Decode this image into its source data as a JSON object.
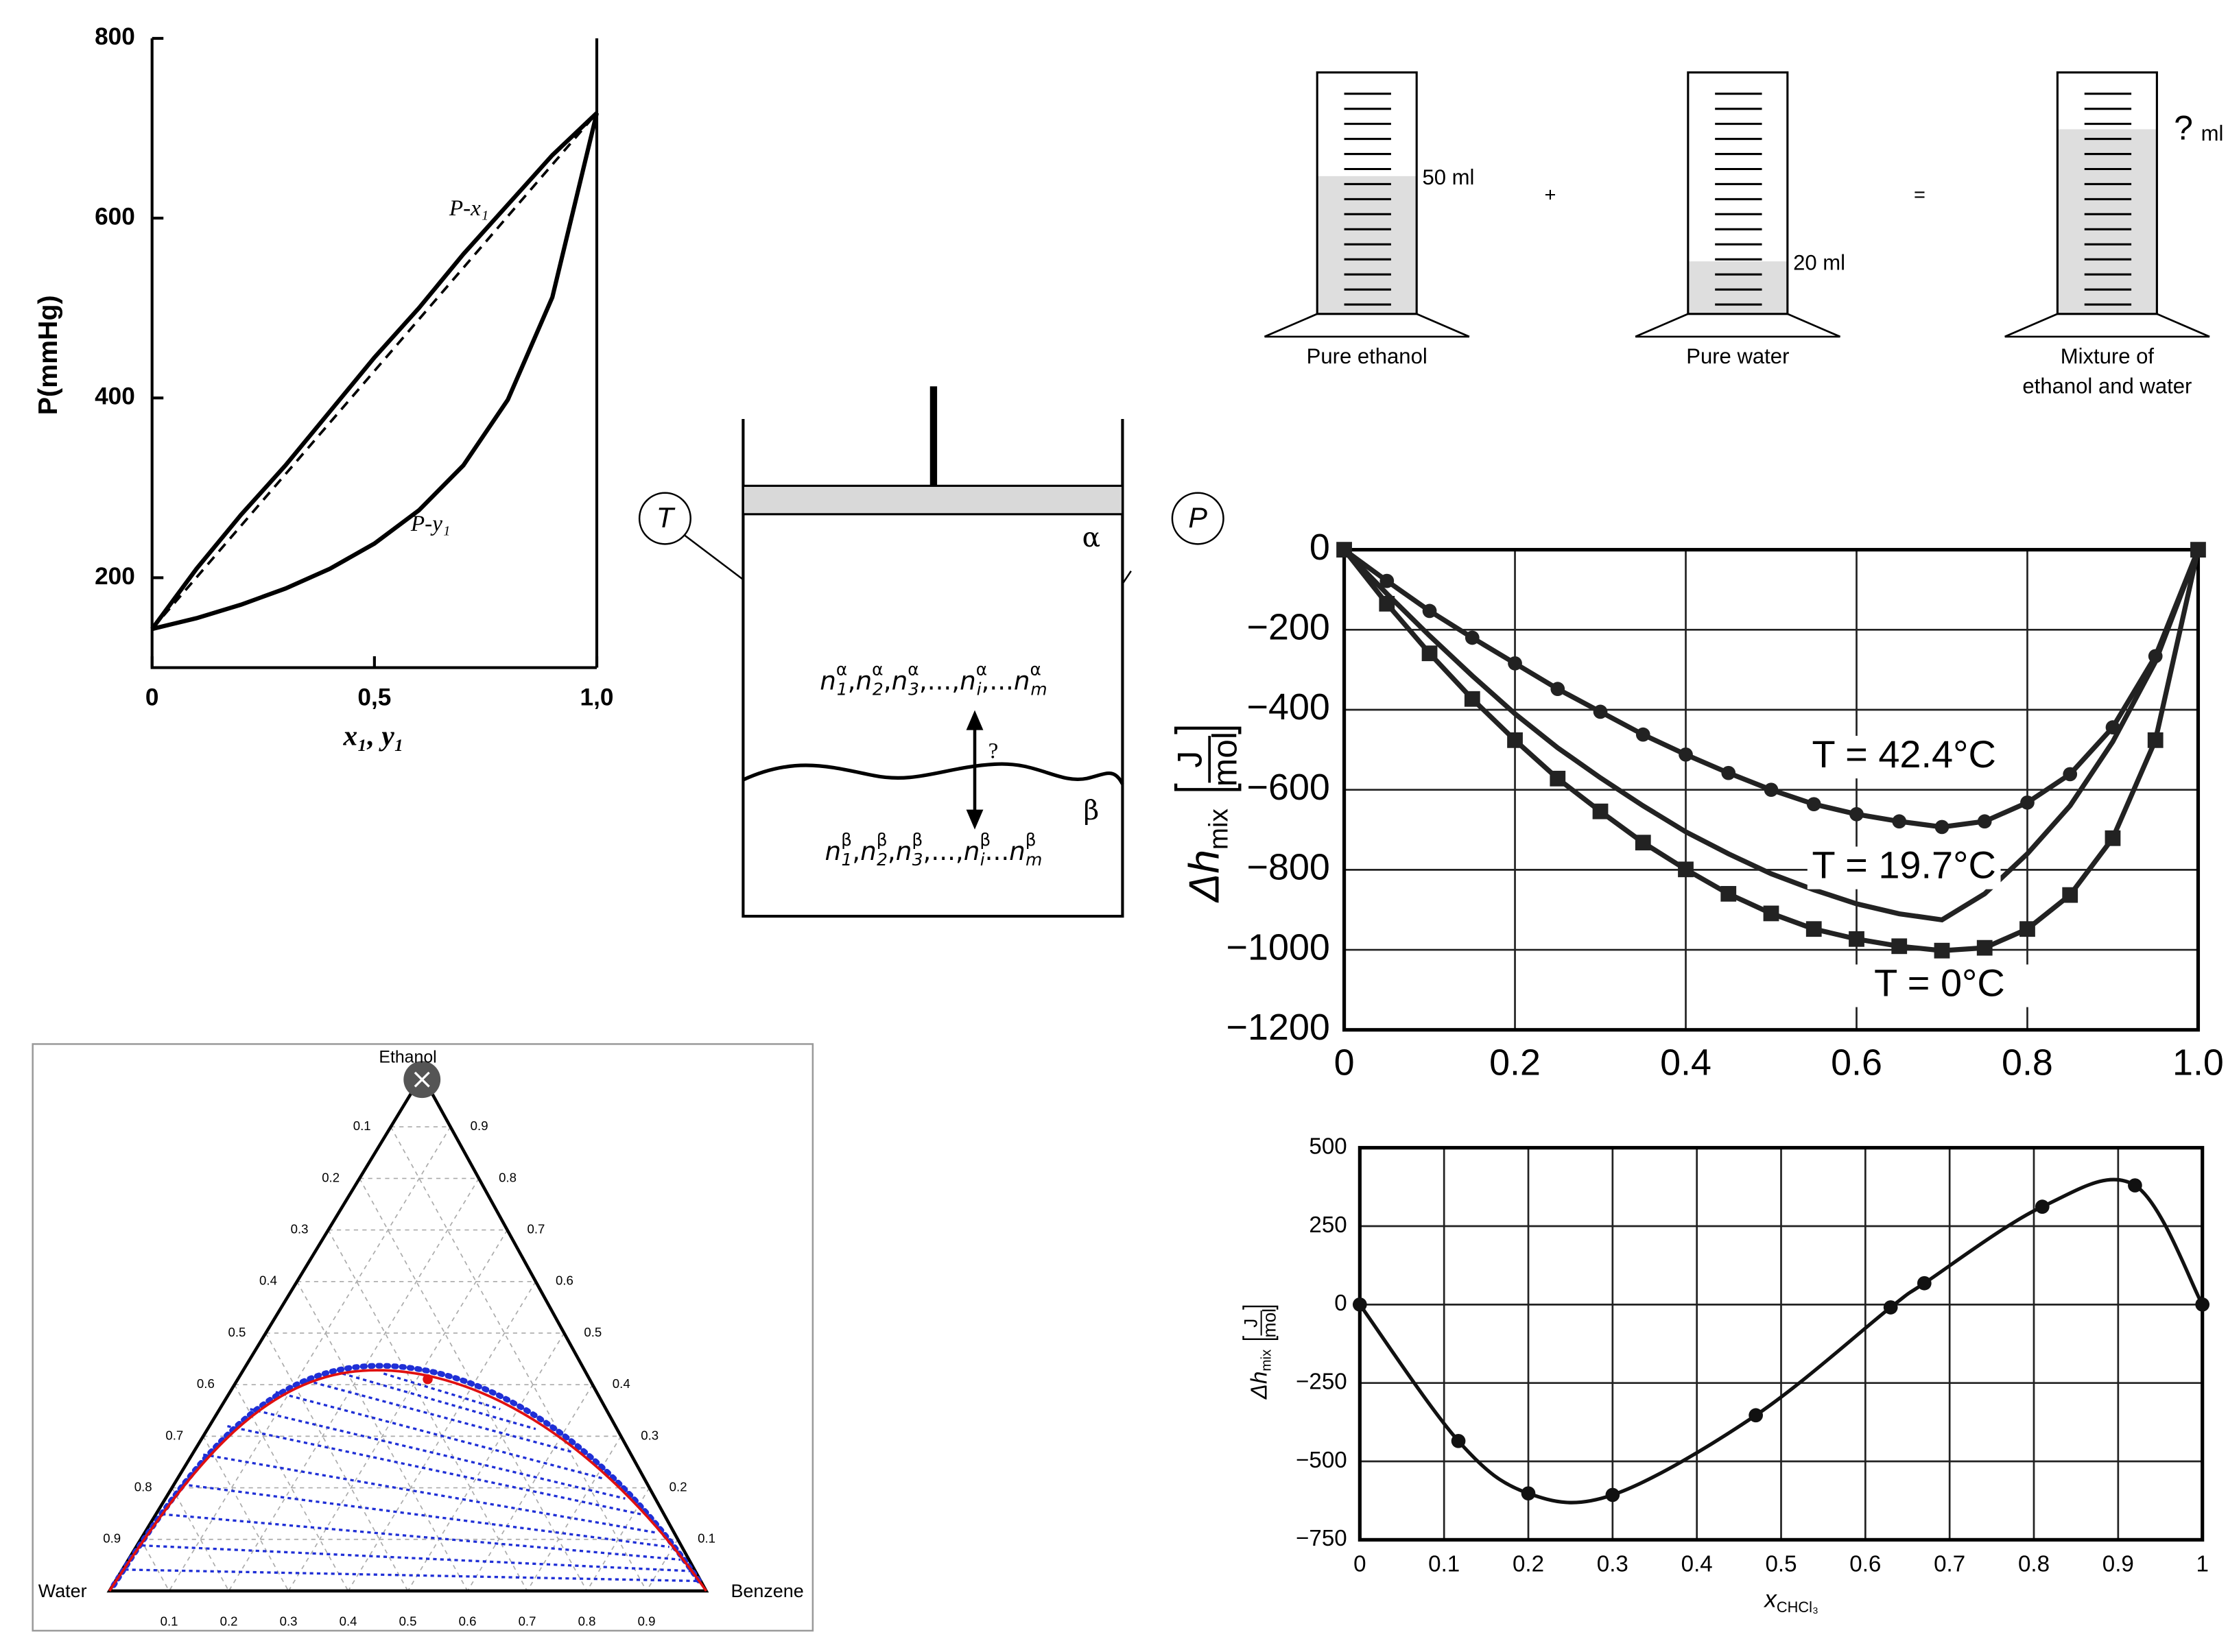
{
  "chart_data": [
    {
      "type": "line",
      "ylabel": "P(mmHg)",
      "xlabel": "x₁, y₁",
      "x": [
        0,
        0.1,
        0.2,
        0.3,
        0.4,
        0.5,
        0.6,
        0.7,
        0.8,
        0.9,
        1
      ],
      "xlim": [
        0,
        1
      ],
      "ylim": [
        100,
        800
      ],
      "xticks": [
        0,
        {
          "value": 0.5,
          "label": "0,5"
        },
        {
          "value": 1,
          "label": "1,0"
        }
      ],
      "yticks": [
        200,
        400,
        600,
        800
      ],
      "grid": false,
      "series": [
        {
          "name": "P-x₁",
          "color": "#000000",
          "values": [
            143,
            210,
            270,
            325,
            385,
            445,
            500,
            560,
            615,
            670,
            717
          ]
        },
        {
          "name": "P-y₁",
          "color": "#000000",
          "values": [
            143,
            155,
            170,
            188,
            210,
            238,
            275,
            325,
            398,
            512,
            717
          ]
        },
        {
          "color": "#000000",
          "dashed": true,
          "x": [
            0,
            1
          ],
          "values": [
            143,
            717
          ]
        }
      ]
    },
    {
      "type": "line",
      "ylabel": {
        "symbol": "Δh",
        "subscript": "mix",
        "unit_numerator": "J",
        "unit_denominator": "mol"
      },
      "x": [
        0,
        0.05,
        0.1,
        0.15,
        0.2,
        0.25,
        0.3,
        0.35,
        0.4,
        0.45,
        0.5,
        0.55,
        0.6,
        0.65,
        0.7,
        0.75,
        0.8,
        0.85,
        0.9,
        0.95,
        1
      ],
      "xlim": [
        0,
        1
      ],
      "ylim": [
        -1200,
        0
      ],
      "xticks": [
        0,
        0.2,
        0.4,
        0.6,
        0.8,
        {
          "value": 1,
          "label": "1.0"
        }
      ],
      "yticks": [
        0,
        {
          "value": -200,
          "label": "−200"
        },
        {
          "value": -400,
          "label": "−400"
        },
        {
          "value": -600,
          "label": "−600"
        },
        {
          "value": -800,
          "label": "−800"
        },
        {
          "value": -1000,
          "label": "−1000"
        },
        {
          "value": -1200,
          "label": "−1200"
        }
      ],
      "grid": true,
      "series": [
        {
          "name": "T = 42.4°C",
          "color": "#222222",
          "marker": "circle",
          "values": [
            0,
            -78,
            -153,
            -220,
            -284,
            -348,
            -405,
            -462,
            -512,
            -558,
            -600,
            -636,
            -661,
            -679,
            -693,
            -679,
            -632,
            -561,
            -444,
            -266,
            0
          ]
        },
        {
          "name": "T = 19.7°C",
          "color": "#222222",
          "values": [
            0,
            -110,
            -215,
            -315,
            -410,
            -495,
            -570,
            -640,
            -705,
            -760,
            -810,
            -850,
            -885,
            -910,
            -925,
            -860,
            -760,
            -640,
            -480,
            -280,
            0
          ]
        },
        {
          "name": "T = 0°C",
          "color": "#222222",
          "marker": "square",
          "values": [
            0,
            -135,
            -259,
            -373,
            -476,
            -572,
            -654,
            -732,
            -799,
            -860,
            -909,
            -948,
            -973,
            -991,
            -1002,
            -995,
            -948,
            -863,
            -721,
            -476,
            0
          ]
        }
      ]
    },
    {
      "type": "line",
      "ylabel": {
        "symbol": "Δh",
        "subscript": "mix",
        "unit_numerator": "J",
        "unit_denominator": "mol"
      },
      "xlabel": {
        "symbol": "x",
        "subscript": "CHCl₃"
      },
      "x": [
        0,
        0.117,
        0.2,
        0.3,
        0.47,
        0.63,
        0.67,
        0.81,
        0.92,
        1
      ],
      "xlim": [
        0,
        1
      ],
      "ylim": [
        -750,
        500
      ],
      "xticks": [
        0,
        0.1,
        0.2,
        0.3,
        0.4,
        0.5,
        0.6,
        0.7,
        0.8,
        0.9,
        1
      ],
      "yticks": [
        {
          "value": -750,
          "label": "−750"
        },
        {
          "value": -500,
          "label": "−500"
        },
        {
          "value": -250,
          "label": "−250"
        },
        0,
        250,
        500
      ],
      "grid": true,
      "smooth": true,
      "series": [
        {
          "color": "#111111",
          "marker": "circle",
          "values": [
            0,
            -435,
            -602,
            -607,
            -353,
            -9,
            68,
            312,
            380,
            0
          ]
        }
      ]
    }
  ],
  "ternary": {
    "apex": "Ethanol",
    "left": "Water",
    "right": "Benzene",
    "ticks": [
      0.1,
      0.2,
      0.3,
      0.4,
      0.5,
      0.6,
      0.7,
      0.8,
      0.9
    ]
  },
  "cylinders": {
    "items": [
      {
        "volume_label": "50 ml",
        "caption": [
          "Pure ethanol"
        ]
      },
      {
        "volume_label": "20 ml",
        "caption": [
          "Pure water"
        ]
      },
      {
        "volume_label": "?",
        "unit": "ml",
        "caption": [
          "Mixture of",
          "ethanol and water"
        ]
      }
    ],
    "operators": [
      "+",
      "="
    ]
  },
  "piston": {
    "temperature": "T",
    "pressure": "P",
    "phase_top": "α",
    "phase_bottom": "β",
    "transfer": "?",
    "amounts_top": [
      {
        "base": "n",
        "sup": "α",
        "sub": "1"
      },
      ",",
      {
        "base": "n",
        "sup": "α",
        "sub": "2"
      },
      ",",
      {
        "base": "n",
        "sup": "α",
        "sub": "3"
      },
      ",...,",
      {
        "base": "n",
        "sup": "α",
        "sub": "i"
      },
      ",...",
      {
        "base": "n",
        "sup": "α",
        "sub": "m"
      }
    ],
    "amounts_bottom": [
      {
        "base": "n",
        "sup": "β",
        "sub": "1"
      },
      ",",
      {
        "base": "n",
        "sup": "β",
        "sub": "2"
      },
      ",",
      {
        "base": "n",
        "sup": "β",
        "sub": "3"
      },
      ",...,",
      {
        "base": "n",
        "sup": "β",
        "sub": "i"
      },
      "...",
      {
        "base": "n",
        "sup": "β",
        "sub": "m"
      }
    ]
  }
}
